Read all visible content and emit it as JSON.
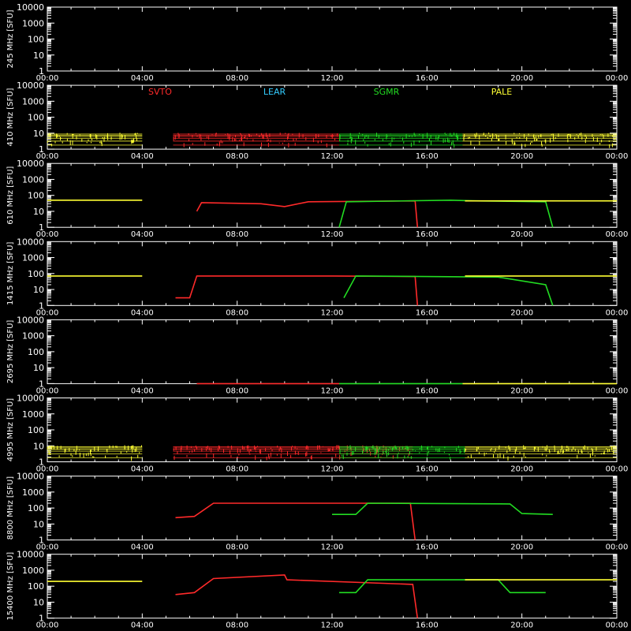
{
  "chart_data": {
    "type": "line",
    "x_tick_labels": [
      "00:00",
      "04:00",
      "08:00",
      "12:00",
      "16:00",
      "20:00",
      "00:00"
    ],
    "x_range_hours": [
      0,
      24
    ],
    "y_axis_unit": "[SFU]",
    "y_tick_labels": [
      "1",
      "10",
      "100",
      "1000",
      "10000"
    ],
    "y_range_log": [
      1,
      10000
    ],
    "y_scale": "log",
    "stations": [
      {
        "name": "SVTO",
        "color": "#ff2a2a",
        "span_hours": [
          4.9,
          15.5
        ]
      },
      {
        "name": "LEAR",
        "color": "#33ccff",
        "span_hours": null
      },
      {
        "name": "SGMR",
        "color": "#22dd22",
        "span_hours": [
          12.3,
          21.3
        ]
      },
      {
        "name": "PALE",
        "color": "#ffff33",
        "span_hours": [
          0.0,
          24.0
        ]
      }
    ],
    "panels": [
      {
        "label": "245 MHz",
        "series": []
      },
      {
        "label": "410 MHz",
        "series": [
          {
            "station": "PALE",
            "points": [
              [
                0,
                5
              ],
              [
                4,
                5
              ]
            ],
            "noisy": true
          },
          {
            "station": "SVTO",
            "points": [
              [
                5.3,
                5
              ],
              [
                12.3,
                5
              ]
            ],
            "noisy": true
          },
          {
            "station": "SGMR",
            "points": [
              [
                12.3,
                5
              ],
              [
                17.5,
                5
              ]
            ],
            "noisy": true
          },
          {
            "station": "PALE",
            "points": [
              [
                17.5,
                5
              ],
              [
                24,
                5
              ]
            ],
            "noisy": true
          }
        ]
      },
      {
        "label": "610 MHz",
        "series": [
          {
            "station": "PALE",
            "points": [
              [
                0,
                50
              ],
              [
                4,
                50
              ]
            ]
          },
          {
            "station": "SVTO",
            "points": [
              [
                6.3,
                10
              ],
              [
                6.5,
                35
              ],
              [
                9,
                30
              ],
              [
                10,
                20
              ],
              [
                11,
                40
              ],
              [
                15.5,
                45
              ],
              [
                15.6,
                1
              ]
            ]
          },
          {
            "station": "SGMR",
            "points": [
              [
                12.3,
                1
              ],
              [
                12.6,
                40
              ],
              [
                17,
                50
              ],
              [
                18,
                45
              ],
              [
                21,
                40
              ],
              [
                21.3,
                1
              ]
            ]
          },
          {
            "station": "PALE",
            "points": [
              [
                17.6,
                45
              ],
              [
                24,
                45
              ]
            ]
          }
        ]
      },
      {
        "label": "1415 MHz",
        "series": [
          {
            "station": "PALE",
            "points": [
              [
                0,
                70
              ],
              [
                4,
                70
              ]
            ]
          },
          {
            "station": "SVTO",
            "points": [
              [
                5.4,
                3
              ],
              [
                6,
                3
              ],
              [
                6.3,
                70
              ],
              [
                12,
                70
              ],
              [
                15.5,
                65
              ],
              [
                15.6,
                1
              ]
            ]
          },
          {
            "station": "SGMR",
            "points": [
              [
                12.5,
                3
              ],
              [
                13,
                70
              ],
              [
                19,
                60
              ],
              [
                21,
                20
              ],
              [
                21.3,
                1
              ]
            ]
          },
          {
            "station": "PALE",
            "points": [
              [
                17.6,
                70
              ],
              [
                24,
                70
              ]
            ]
          }
        ]
      },
      {
        "label": "2695 MHz",
        "series": [
          {
            "station": "SVTO",
            "points": [
              [
                6.3,
                1
              ],
              [
                12.3,
                1
              ]
            ]
          },
          {
            "station": "SGMR",
            "points": [
              [
                12.3,
                1
              ],
              [
                17.5,
                1
              ]
            ]
          },
          {
            "station": "PALE",
            "points": [
              [
                17.5,
                1
              ],
              [
                24,
                1
              ]
            ]
          }
        ]
      },
      {
        "label": "4995 MHz",
        "series": [
          {
            "station": "PALE",
            "points": [
              [
                0,
                5
              ],
              [
                4,
                5
              ]
            ],
            "noisy": true
          },
          {
            "station": "SVTO",
            "points": [
              [
                5.3,
                5
              ],
              [
                15.4,
                5
              ]
            ],
            "noisy": true
          },
          {
            "station": "SGMR",
            "points": [
              [
                12.3,
                5
              ],
              [
                17.6,
                5
              ]
            ],
            "noisy": true
          },
          {
            "station": "PALE",
            "points": [
              [
                17.6,
                5
              ],
              [
                24,
                5
              ]
            ],
            "noisy": true
          }
        ]
      },
      {
        "label": "8800 MHz",
        "series": [
          {
            "station": "SVTO",
            "points": [
              [
                5.4,
                25
              ],
              [
                6.2,
                30
              ],
              [
                7,
                200
              ],
              [
                15.3,
                200
              ],
              [
                15.5,
                1
              ]
            ]
          },
          {
            "station": "SGMR",
            "points": [
              [
                12.0,
                40
              ],
              [
                13,
                40
              ],
              [
                13.5,
                200
              ],
              [
                19.5,
                180
              ],
              [
                20,
                45
              ],
              [
                21.3,
                40
              ]
            ]
          }
        ]
      },
      {
        "label": "15400 MHz",
        "series": [
          {
            "station": "PALE",
            "points": [
              [
                0,
                200
              ],
              [
                4,
                200
              ]
            ]
          },
          {
            "station": "SVTO",
            "points": [
              [
                5.4,
                30
              ],
              [
                6.2,
                40
              ],
              [
                7,
                300
              ],
              [
                10,
                500
              ],
              [
                10.1,
                250
              ],
              [
                15.4,
                130
              ],
              [
                15.6,
                1
              ]
            ]
          },
          {
            "station": "SGMR",
            "points": [
              [
                12.3,
                40
              ],
              [
                13,
                40
              ],
              [
                13.5,
                250
              ],
              [
                19,
                250
              ],
              [
                19.5,
                40
              ],
              [
                21,
                40
              ]
            ]
          },
          {
            "station": "PALE",
            "points": [
              [
                17.6,
                250
              ],
              [
                24,
                250
              ]
            ]
          }
        ]
      }
    ]
  }
}
